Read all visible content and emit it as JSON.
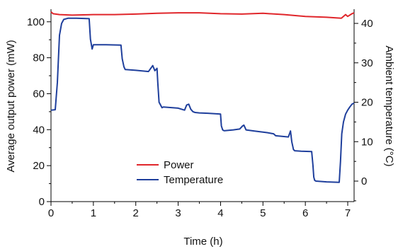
{
  "chart_data": {
    "type": "line",
    "title": "",
    "xlabel": "Time (h)",
    "ylabel_left": "Average output power (mW)",
    "ylabel_right": "Ambient temperature (°C)",
    "x_range": [
      0,
      7.15
    ],
    "y_left_range": [
      0,
      107
    ],
    "y_right_range": [
      -5.2,
      43.6
    ],
    "x_ticks": [
      0,
      1,
      2,
      3,
      4,
      5,
      6,
      7
    ],
    "y_left_ticks": [
      0,
      20,
      40,
      60,
      80,
      100
    ],
    "y_right_ticks": [
      0,
      10,
      20,
      30,
      40
    ],
    "grid": false,
    "legend_position": "bottom-center",
    "series": [
      {
        "name": "Power",
        "axis": "left",
        "color": "#e0262b",
        "x": [
          0,
          0.05,
          0.2,
          0.5,
          1.0,
          1.5,
          2.0,
          2.5,
          3.0,
          3.5,
          4.0,
          4.5,
          5.0,
          5.5,
          6.0,
          6.5,
          6.85,
          6.95,
          7.0,
          7.1,
          7.15
        ],
        "y": [
          105.5,
          104.5,
          104,
          103.7,
          104,
          104,
          104.3,
          104.7,
          105,
          105,
          104.5,
          104.3,
          104.7,
          104,
          103,
          102.5,
          102,
          104,
          103,
          104.5,
          105
        ]
      },
      {
        "name": "Temperature",
        "axis": "right",
        "color": "#1f3f9c",
        "x": [
          0,
          0.1,
          0.15,
          0.2,
          0.25,
          0.3,
          0.4,
          0.6,
          0.9,
          0.93,
          0.97,
          1.0,
          1.3,
          1.65,
          1.68,
          1.72,
          1.75,
          2.0,
          2.3,
          2.4,
          2.45,
          2.5,
          2.52,
          2.55,
          2.6,
          2.62,
          2.65,
          3.0,
          3.15,
          3.2,
          3.25,
          3.3,
          3.35,
          3.4,
          3.5,
          3.7,
          4.0,
          4.02,
          4.05,
          4.08,
          4.1,
          4.3,
          4.45,
          4.52,
          4.55,
          4.58,
          4.6,
          4.8,
          5.1,
          5.2,
          5.25,
          5.3,
          5.6,
          5.65,
          5.68,
          5.72,
          5.75,
          5.9,
          6.15,
          6.18,
          6.2,
          6.22,
          6.25,
          6.5,
          6.8,
          6.83,
          6.86,
          6.9,
          6.95,
          7.0,
          7.05,
          7.1,
          7.15
        ],
        "y": [
          18.0,
          18.1,
          25.0,
          37.0,
          40.0,
          41.0,
          41.3,
          41.3,
          41.2,
          36.0,
          33.5,
          34.6,
          34.6,
          34.5,
          31.0,
          29.0,
          28.3,
          28.1,
          27.8,
          29.3,
          28.0,
          28.6,
          25.0,
          20.0,
          19.0,
          18.6,
          18.8,
          18.5,
          18.0,
          19.3,
          19.5,
          18.2,
          17.6,
          17.4,
          17.3,
          17.2,
          17.0,
          14.0,
          13.0,
          12.8,
          12.8,
          13.0,
          13.2,
          14.0,
          14.2,
          13.5,
          13.0,
          12.7,
          12.3,
          12.1,
          12.0,
          11.5,
          11.2,
          12.7,
          10.0,
          8.0,
          7.7,
          7.6,
          7.5,
          4.0,
          1.0,
          0.2,
          0.0,
          -0.2,
          -0.3,
          5.0,
          12.0,
          15.0,
          17.0,
          18.0,
          18.8,
          19.5,
          19.8
        ]
      }
    ]
  }
}
